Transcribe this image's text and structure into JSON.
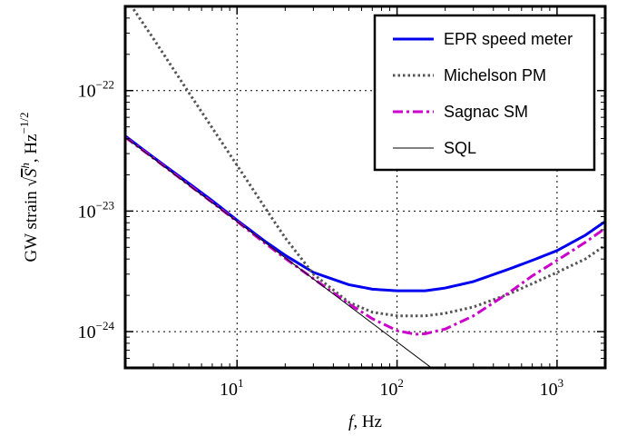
{
  "chart_data": {
    "type": "line",
    "title": "",
    "xlabel": "f, Hz",
    "ylabel": "GW strain √S^h, Hz^−1/2",
    "xscale": "log",
    "yscale": "log",
    "xlim": [
      2,
      2000
    ],
    "ylim": [
      5e-25,
      5e-22
    ],
    "grid": true,
    "legend_position": "top-right",
    "x_ticks": [
      {
        "value": 10,
        "base": "10",
        "exp": "1"
      },
      {
        "value": 100,
        "base": "10",
        "exp": "2"
      },
      {
        "value": 1000,
        "base": "10",
        "exp": "3"
      }
    ],
    "y_ticks": [
      {
        "value": 1e-22,
        "base": "10",
        "exp": "−22"
      },
      {
        "value": 1e-23,
        "base": "10",
        "exp": "−23"
      },
      {
        "value": 1e-24,
        "base": "10",
        "exp": "−24"
      }
    ],
    "series": [
      {
        "name": "EPR speed meter",
        "color": "#0000ee",
        "style": "solid",
        "width": 3,
        "x": [
          2,
          3,
          5,
          7,
          10,
          15,
          20,
          30,
          50,
          70,
          100,
          150,
          200,
          300,
          500,
          700,
          1000,
          1500,
          2000
        ],
        "y": [
          4.2e-23,
          2.8e-23,
          1.7e-23,
          1.22e-23,
          8.4e-24,
          5.6e-24,
          4.3e-24,
          3.1e-24,
          2.45e-24,
          2.25e-24,
          2.18e-24,
          2.18e-24,
          2.3e-24,
          2.6e-24,
          3.3e-24,
          3.9e-24,
          4.7e-24,
          6.3e-24,
          8.2e-24
        ]
      },
      {
        "name": "Michelson PM",
        "color": "#555555",
        "style": "dotted",
        "width": 3,
        "x": [
          2,
          3,
          5,
          7,
          10,
          15,
          20,
          30,
          50,
          70,
          100,
          150,
          200,
          300,
          500,
          700,
          1000,
          1500,
          2000
        ],
        "y": [
          6e-22,
          2.7e-22,
          9.6e-23,
          4.9e-23,
          2.4e-23,
          1.06e-23,
          6e-24,
          3e-24,
          1.75e-24,
          1.45e-24,
          1.35e-24,
          1.35e-24,
          1.42e-24,
          1.6e-24,
          2.05e-24,
          2.5e-24,
          3.1e-24,
          4e-24,
          5.2e-24
        ]
      },
      {
        "name": "Sagnac SM",
        "color": "#cc00cc",
        "style": "dashdot",
        "width": 3,
        "x": [
          2,
          3,
          5,
          7,
          10,
          15,
          20,
          30,
          50,
          70,
          100,
          130,
          150,
          200,
          300,
          500,
          700,
          1000,
          1500,
          2000
        ],
        "y": [
          4.1e-23,
          2.75e-23,
          1.65e-23,
          1.18e-23,
          8.2e-24,
          5.4e-24,
          4.05e-24,
          2.75e-24,
          1.7e-24,
          1.28e-24,
          1.02e-24,
          9.5e-25,
          9.6e-25,
          1.05e-24,
          1.35e-24,
          2.1e-24,
          2.9e-24,
          3.9e-24,
          5.5e-24,
          7.2e-24
        ]
      },
      {
        "name": "SQL",
        "color": "#000000",
        "style": "solid",
        "width": 1,
        "x": [
          2,
          180
        ],
        "y": [
          4.1e-23,
          4.56e-25
        ]
      }
    ]
  }
}
